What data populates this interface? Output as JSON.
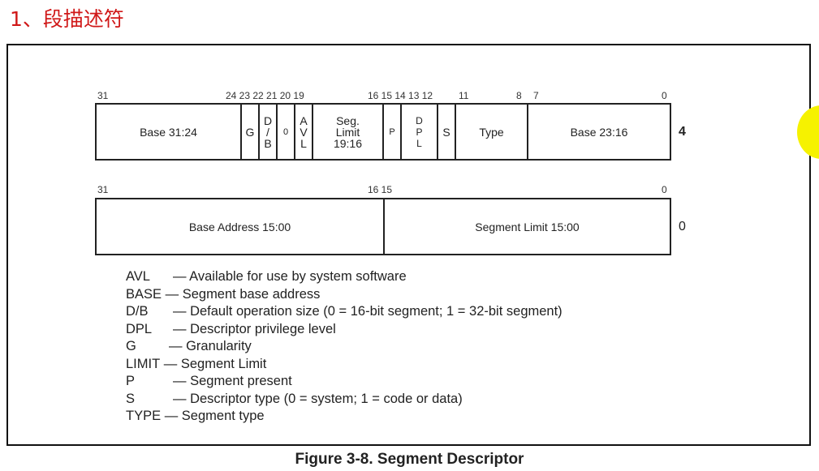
{
  "title": "1、段描述符",
  "row_high": {
    "offset": "4",
    "bits": [
      "31",
      "24 23 22 21 20 19",
      "16 15 14 13 12",
      "11",
      "8",
      "7",
      "0"
    ],
    "fields": [
      "Base 31:24",
      "G",
      "D\n/\nB",
      "0",
      "A\nV\nL",
      "Seg.\nLimit\n19:16",
      "P",
      "D\nP\nL",
      "S",
      "Type",
      "Base 23:16"
    ]
  },
  "row_low": {
    "offset": "0",
    "bits": [
      "31",
      "16 15",
      "0"
    ],
    "fields": [
      "Base Address 15:00",
      "Segment Limit 15:00"
    ]
  },
  "legend": [
    {
      "key": "AVL",
      "desc": "— Available for use by system software"
    },
    {
      "key": "BASE",
      "desc": "— Segment base address"
    },
    {
      "key": "D/B",
      "desc": "— Default operation size (0 = 16-bit segment; 1 = 32-bit segment)"
    },
    {
      "key": "DPL",
      "desc": "— Descriptor privilege level"
    },
    {
      "key": "G",
      "desc": "— Granularity"
    },
    {
      "key": "LIMIT",
      "desc": "— Segment Limit"
    },
    {
      "key": "P",
      "desc": "— Segment present"
    },
    {
      "key": "S",
      "desc": "— Descriptor type (0 = system; 1 = code or data)"
    },
    {
      "key": "TYPE",
      "desc": "— Segment type"
    }
  ],
  "caption": "Figure 3-8.  Segment Descriptor",
  "colors": {
    "title": "#d01818",
    "cursor_highlight": "#f6f200"
  }
}
